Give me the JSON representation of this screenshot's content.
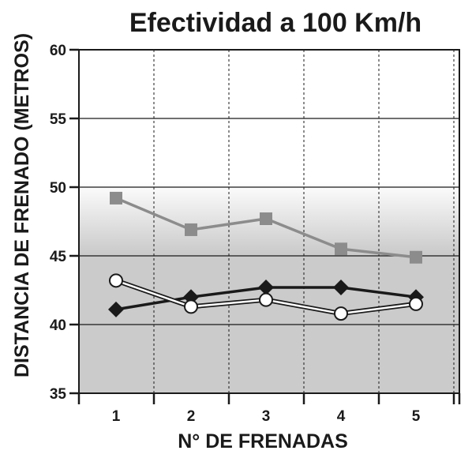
{
  "chart_data": {
    "type": "line",
    "title": "Efectividad a 100 Km/h",
    "xlabel": "N° DE FRENADAS",
    "ylabel": "DISTANCIA DE FRENADO (METROS)",
    "x": [
      1,
      2,
      3,
      4,
      5
    ],
    "x_tick_labels": [
      "1",
      "2",
      "3",
      "4",
      "5"
    ],
    "ylim": [
      35,
      60
    ],
    "y_ticks": [
      35,
      40,
      45,
      50,
      55,
      60
    ],
    "y_tick_labels": [
      "35",
      "40",
      "45",
      "50",
      "55",
      "60"
    ],
    "grid": true,
    "legend": "none",
    "series": [
      {
        "marker": "square",
        "color": "#8c8c8c",
        "values": [
          49.2,
          46.9,
          47.7,
          45.5,
          44.9
        ]
      },
      {
        "marker": "diamond",
        "color": "#1a1a1a",
        "values": [
          41.1,
          42.0,
          42.7,
          42.7,
          42.0
        ]
      },
      {
        "marker": "circle-open",
        "color": "#1a1a1a",
        "values": [
          43.2,
          41.3,
          41.8,
          40.8,
          41.5
        ]
      }
    ]
  }
}
